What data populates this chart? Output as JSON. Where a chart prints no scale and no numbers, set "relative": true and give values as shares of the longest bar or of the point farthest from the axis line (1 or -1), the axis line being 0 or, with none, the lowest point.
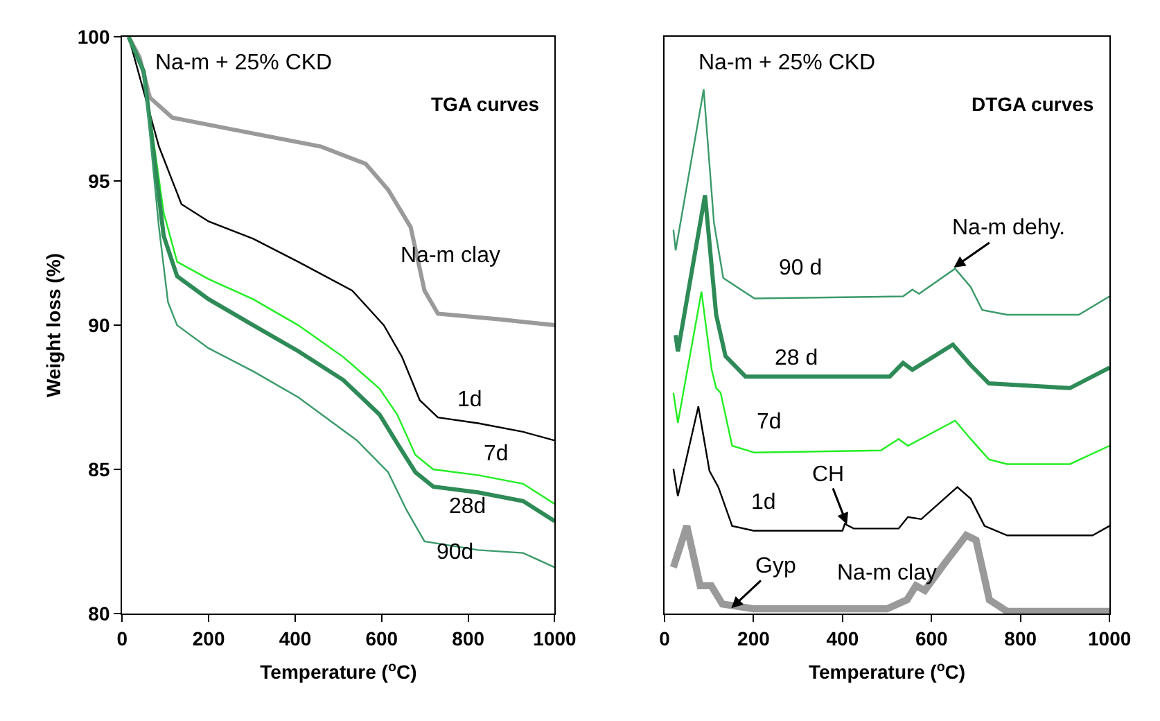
{
  "chart_data": [
    {
      "type": "line",
      "title": "Na-m + 25% CKD",
      "subtitle": "TGA curves",
      "xlabel": "Temperature ($^{o}$C)",
      "ylabel": "Weight loss (%)",
      "xlim": [
        0,
        1000
      ],
      "xticks": [
        0,
        200,
        400,
        600,
        800,
        1000
      ],
      "ylim": [
        80,
        100
      ],
      "yticks": [
        80,
        85,
        90,
        95,
        100
      ],
      "legend": false,
      "marker": "none",
      "line_style": "solid",
      "series": [
        {
          "name": "Na-m clay",
          "color": "#9a9a9a",
          "x": [
            15,
            40,
            64,
            116,
            252,
            459,
            563,
            615,
            667,
            699,
            730,
            875,
            1000
          ],
          "values": [
            100,
            99.3,
            97.9,
            97.2,
            96.8,
            96.2,
            95.6,
            94.7,
            93.4,
            91.2,
            90.4,
            90.2,
            90.0
          ]
        },
        {
          "name": "1d",
          "color": "#000000",
          "x": [
            15,
            85,
            137,
            200,
            303,
            407,
            532,
            605,
            647,
            688,
            730,
            823,
            927,
            1000
          ],
          "values": [
            100,
            96.2,
            94.2,
            93.6,
            93.0,
            92.2,
            91.2,
            90.0,
            88.9,
            87.4,
            86.8,
            86.6,
            86.3,
            86.0
          ]
        },
        {
          "name": "7d",
          "color": "#22ee22",
          "x": [
            15,
            50,
            96,
            127,
            200,
            303,
            407,
            511,
            595,
            636,
            678,
            719,
            823,
            927,
            1000
          ],
          "values": [
            100,
            98.8,
            93.9,
            92.2,
            91.6,
            90.9,
            90.0,
            88.9,
            87.8,
            86.9,
            85.5,
            85.0,
            84.8,
            84.5,
            83.8
          ]
        },
        {
          "name": "28d",
          "color": "#2e8b57",
          "x": [
            15,
            50,
            96,
            127,
            200,
            303,
            407,
            511,
            595,
            636,
            678,
            719,
            823,
            927,
            1000
          ],
          "values": [
            100,
            98.8,
            93.1,
            91.7,
            90.9,
            90.0,
            89.1,
            88.1,
            86.9,
            85.9,
            84.9,
            84.4,
            84.2,
            83.9,
            83.2
          ]
        },
        {
          "name": "90d",
          "color": "#3a9a6a",
          "x": [
            15,
            50,
            85,
            106,
            127,
            200,
            303,
            407,
            543,
            615,
            657,
            699,
            823,
            927,
            1000
          ],
          "values": [
            100,
            98.8,
            93.4,
            90.8,
            90.0,
            89.2,
            88.4,
            87.5,
            86.0,
            84.9,
            83.6,
            82.5,
            82.2,
            82.1,
            81.6
          ]
        }
      ]
    },
    {
      "type": "line",
      "title": "Na-m + 25% CKD",
      "subtitle": "DTGA curves",
      "xlabel": "Temperature ($^{o}$C)",
      "xlim": [
        0,
        1000
      ],
      "xticks": [
        0,
        200,
        400,
        600,
        800,
        1000
      ],
      "relative": true,
      "tick_labels": "x",
      "legend": false,
      "marker": "none",
      "line_style": "solid",
      "series": [
        {
          "name": "Na-m clay",
          "color": "#9a9a9a",
          "x": [
            20,
            50,
            80,
            105,
            130,
            200,
            500,
            545,
            565,
            585,
            630,
            678,
            700,
            730,
            770,
            1000
          ],
          "values": [
            0.088,
            0.167,
            0.053,
            0.053,
            0.018,
            0.009,
            0.009,
            0.026,
            0.053,
            0.044,
            0.096,
            0.149,
            0.14,
            0.026,
            0.004,
            0.004
          ]
        },
        {
          "name": "1d",
          "color": "#000000",
          "x": [
            20,
            30,
            76,
            101,
            121,
            152,
            200,
            400,
            405,
            425,
            526,
            547,
            577,
            658,
            688,
            719,
            770,
            962,
            1000
          ],
          "values": [
            0.276,
            0.224,
            0.395,
            0.272,
            0.241,
            0.167,
            0.158,
            0.158,
            0.171,
            0.162,
            0.162,
            0.184,
            0.18,
            0.241,
            0.219,
            0.167,
            0.149,
            0.149,
            0.167
          ]
        },
        {
          "name": "7d",
          "color": "#22ee22",
          "x": [
            20,
            30,
            83,
            106,
            116,
            126,
            152,
            202,
            486,
            526,
            547,
            653,
            688,
            729,
            770,
            911,
            1000
          ],
          "values": [
            0.421,
            0.364,
            0.614,
            0.465,
            0.43,
            0.421,
            0.32,
            0.307,
            0.311,
            0.333,
            0.32,
            0.368,
            0.333,
            0.294,
            0.285,
            0.285,
            0.32
          ]
        },
        {
          "name": "28 d",
          "color": "#2e8b57",
          "x": [
            25,
            30,
            91,
            116,
            137,
            182,
            506,
            536,
            557,
            648,
            688,
            729,
            911,
            1000
          ],
          "values": [
            0.531,
            0.5,
            0.798,
            0.57,
            0.491,
            0.452,
            0.452,
            0.478,
            0.465,
            0.513,
            0.474,
            0.439,
            0.43,
            0.469
          ]
        },
        {
          "name": "90 d",
          "color": "#3a9a6a",
          "x": [
            20,
            25,
            88,
            111,
            132,
            202,
            536,
            557,
            572,
            653,
            688,
            714,
            770,
            931,
            1000
          ],
          "values": [
            0.732,
            0.693,
            1,
            0.746,
            0.64,
            0.601,
            0.605,
            0.618,
            0.61,
            0.658,
            0.623,
            0.579,
            0.57,
            0.57,
            0.605
          ]
        }
      ],
      "annotations": [
        {
          "text": "Gyp",
          "x": 150,
          "y": 0.01
        },
        {
          "text": "CH",
          "x": 410,
          "y": 0.17
        },
        {
          "text": "Na-m dehy.",
          "x": 650,
          "y": 0.66
        }
      ]
    }
  ]
}
